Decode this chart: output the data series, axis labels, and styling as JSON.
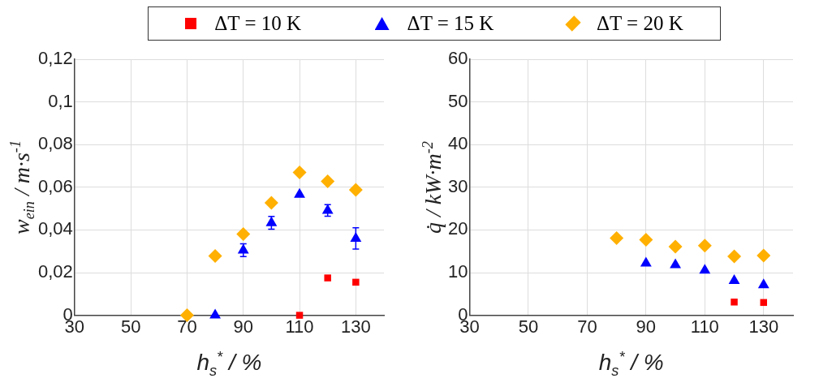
{
  "chart_data": [
    {
      "type": "scatter",
      "xlabel": "h$_{s}$$^{*}$ / %",
      "ylabel": "w$_{ein}$ / m·s$^{-1}$",
      "x": [
        70,
        80,
        90,
        100,
        110,
        120,
        130
      ],
      "series": [
        {
          "name": "ΔT = 10 K",
          "color": "#ff0000",
          "marker": "square",
          "values": [
            null,
            null,
            null,
            null,
            0,
            0.0175,
            0.0155
          ]
        },
        {
          "name": "ΔT = 15 K",
          "color": "#0000ff",
          "marker": "triangle",
          "values": [
            null,
            0,
            0.0305,
            0.0433,
            0.0566,
            0.0491,
            0.036
          ],
          "errors": [
            null,
            null,
            0.003,
            0.003,
            null,
            0.0027,
            0.005
          ]
        },
        {
          "name": "ΔT = 20 K",
          "color": "#ffb000",
          "marker": "diamond",
          "values": [
            0,
            0.0278,
            0.0381,
            0.0527,
            0.067,
            0.0628,
            0.0588
          ]
        }
      ],
      "xlim": [
        30,
        140
      ],
      "xticks": [
        30,
        50,
        70,
        90,
        110,
        130
      ],
      "ylim": [
        0,
        0.12
      ],
      "yticks": [
        0,
        {
          "value": 0.02,
          "label": "0,02"
        },
        {
          "value": 0.04,
          "label": "0,04"
        },
        {
          "value": 0.06,
          "label": "0,06"
        },
        {
          "value": 0.08,
          "label": "0,08"
        },
        {
          "value": 0.1,
          "label": "0,1"
        },
        {
          "value": 0.12,
          "label": "0,12"
        }
      ],
      "grid": true,
      "legend": "top"
    },
    {
      "type": "scatter",
      "xlabel": "h$_{s}$$^{*}$ / %",
      "ylabel": "q̇ / kW·m$^{-2}$",
      "x": [
        80,
        90,
        100,
        110,
        120,
        130
      ],
      "series": [
        {
          "color": "#ff0000",
          "marker": "square",
          "values": [
            null,
            null,
            null,
            null,
            3.1,
            3.0
          ]
        },
        {
          "color": "#0000ff",
          "marker": "triangle",
          "values": [
            null,
            12.2,
            11.8,
            10.5,
            8.1,
            7.1
          ]
        },
        {
          "color": "#ffb000",
          "marker": "diamond",
          "values": [
            18.1,
            17.7,
            16.1,
            16.3,
            13.8,
            14.0
          ]
        }
      ],
      "xlim": [
        30,
        140
      ],
      "xticks": [
        30,
        50,
        70,
        90,
        110,
        130
      ],
      "ylim": [
        0,
        60
      ],
      "yticks": [
        0,
        10,
        20,
        30,
        40,
        50,
        60
      ],
      "grid": true
    }
  ]
}
